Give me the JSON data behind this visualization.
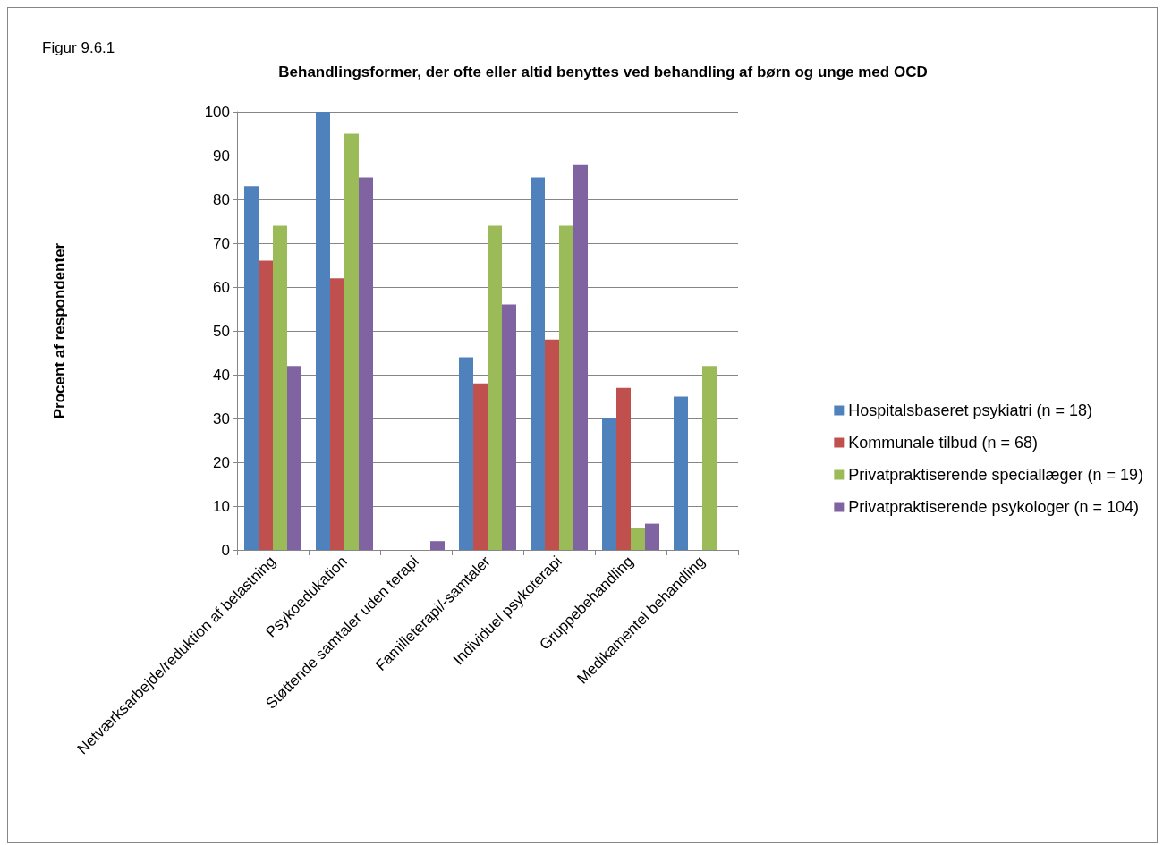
{
  "chart_data": {
    "type": "bar",
    "title": "Behandlingsformer, der ofte eller altid benyttes ved behandling af børn og unge med OCD",
    "ylabel": "Procent af respondenter",
    "annotations": [
      "Figur 9.6.1"
    ],
    "categories": [
      "Netværksarbejde/reduktion af belastning",
      "Psykoedukation",
      "Støttende samtaler uden terapi",
      "Familieterapi/-samtaler",
      "Individuel psykoterapi",
      "Gruppebehandling",
      "Medikamentel behandling"
    ],
    "series": [
      {
        "name": "Hospitalsbaseret psykiatri (n = 18)",
        "color": "#4f81bd",
        "values": [
          83,
          100,
          0,
          44,
          85,
          30,
          35
        ]
      },
      {
        "name": "Kommunale tilbud (n = 68)",
        "color": "#c0504d",
        "values": [
          66,
          62,
          0,
          38,
          48,
          37,
          0
        ]
      },
      {
        "name": "Privatpraktiserende speciallæger (n = 19)",
        "color": "#9bbb59",
        "values": [
          74,
          95,
          0,
          74,
          74,
          5,
          42
        ]
      },
      {
        "name": "Privatpraktiserende psykologer (n = 104)",
        "color": "#8064a2",
        "values": [
          42,
          85,
          2,
          56,
          88,
          6,
          0
        ]
      }
    ],
    "ylim": [
      0,
      100
    ],
    "yticks": [
      0,
      10,
      20,
      30,
      40,
      50,
      60,
      70,
      80,
      90,
      100
    ],
    "grid": "y",
    "legend": "right"
  }
}
